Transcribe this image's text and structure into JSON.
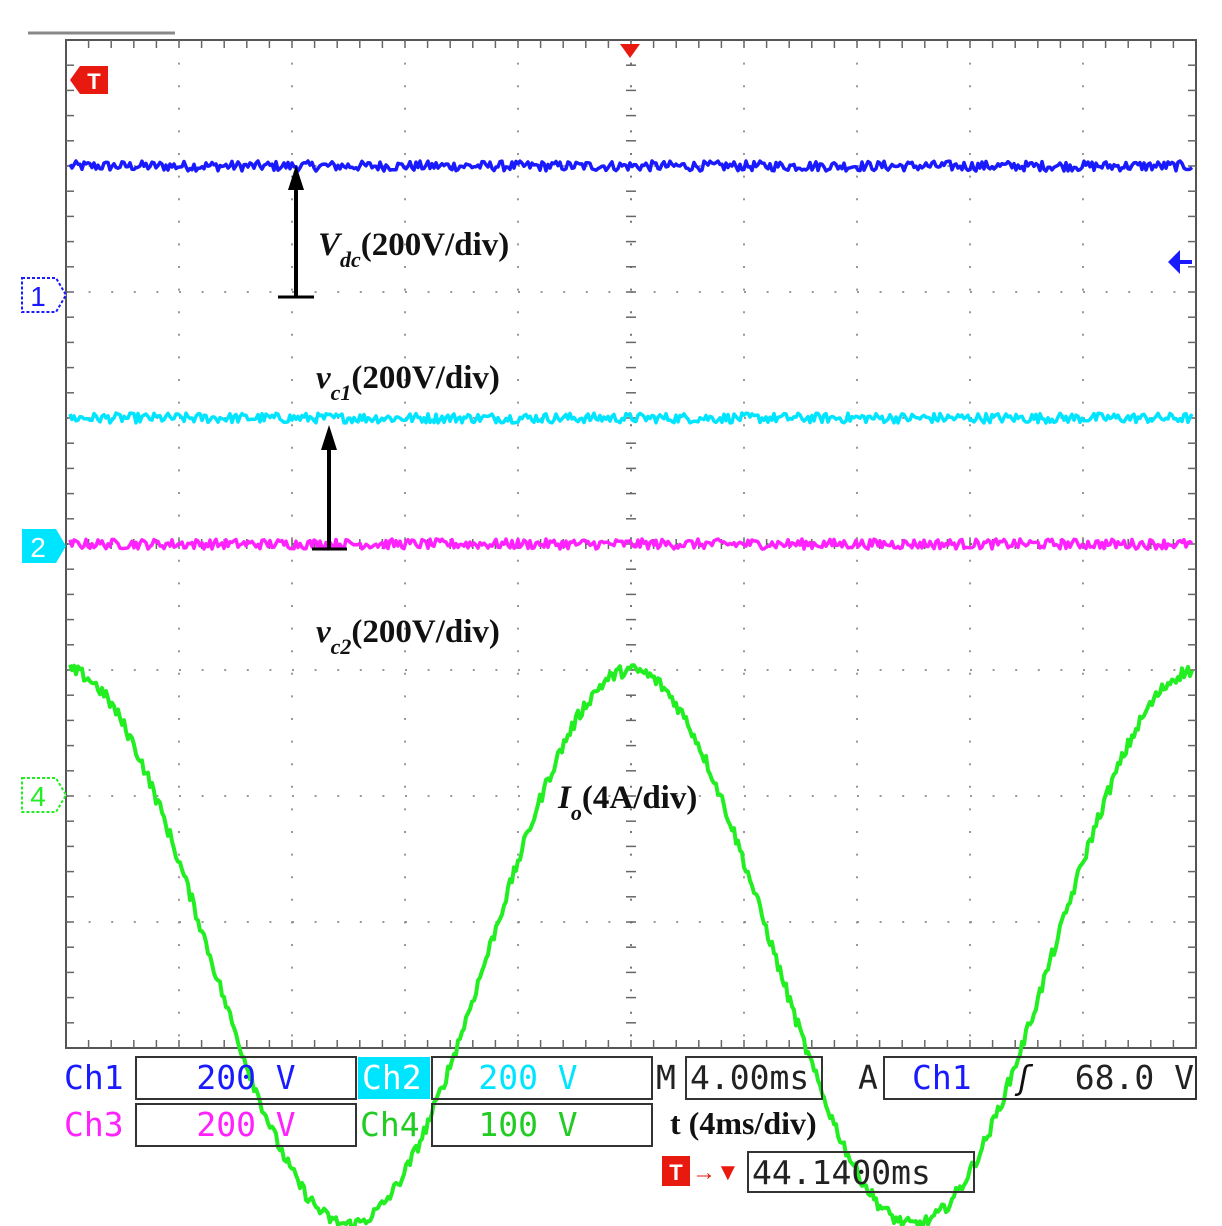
{
  "chart_data": {
    "type": "line",
    "title": "",
    "xlabel": "t (4ms/div)",
    "x_unit": "ms",
    "x_range": [
      0,
      40
    ],
    "grid": true,
    "grid_divisions": {
      "x": 10,
      "y": 8
    },
    "series": [
      {
        "name": "Vdc",
        "channel": "Ch1",
        "color": "#1a1aff",
        "level_div": 3.0,
        "shape": "dc",
        "noise_div": 0.04
      },
      {
        "name": "vc1",
        "channel": "Ch2",
        "color": "#00e5ff",
        "level_div": 1.0,
        "shape": "dc",
        "noise_div": 0.04
      },
      {
        "name": "vc2",
        "channel": "Ch3",
        "color": "#ff22ff",
        "level_div": 0.0,
        "shape": "dc",
        "noise_div": 0.04
      },
      {
        "name": "Io",
        "channel": "Ch4",
        "color": "#22ee22",
        "center_div": -3.2,
        "amplitude_div": 2.2,
        "period_ms": 20,
        "phase_peak_ms": 0,
        "shape": "sine",
        "noise_div": 0.05
      }
    ],
    "annotations": {
      "vdc": {
        "main": "V",
        "sub": "dc",
        "rest": "(200V/div)"
      },
      "vc1": {
        "main": "v",
        "sub": "c1",
        "rest": "(200V/div)"
      },
      "vc2": {
        "main": "v",
        "sub": "c2",
        "rest": "(200V/div)"
      },
      "io": {
        "main": "I",
        "sub": "o",
        "rest": "(4A/div)"
      }
    },
    "markers": {
      "ch1": "1",
      "ch2": "2",
      "ch4": "4",
      "trigger": "T"
    }
  },
  "readout": {
    "ch1": {
      "name": "Ch1",
      "value": "200 V"
    },
    "ch2": {
      "name": "Ch2",
      "value": "200 V"
    },
    "ch3": {
      "name": "Ch3",
      "value": "200 V"
    },
    "ch4": {
      "name": "Ch4",
      "value": "100 V"
    },
    "timebase": {
      "prefix": "M",
      "value": "4.00ms"
    },
    "acq": {
      "prefix": "A",
      "channel": "Ch1",
      "slope": "ʃ",
      "level": "68.0 V"
    },
    "time_label": "t (4ms/div)",
    "trigger_pos": {
      "symbol": "T",
      "arrow": "→▼",
      "value": "44.1400ms"
    }
  },
  "colors": {
    "ch1": "#1a1aff",
    "ch2": "#00e5ff",
    "ch3": "#ff22ff",
    "ch4": "#22ee22",
    "trigger": "#e8190f"
  }
}
